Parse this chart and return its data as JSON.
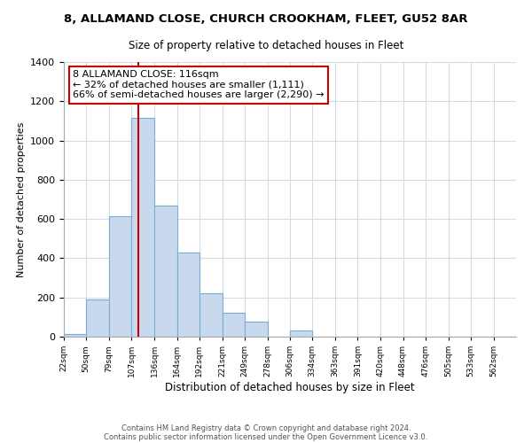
{
  "title": "8, ALLAMAND CLOSE, CHURCH CROOKHAM, FLEET, GU52 8AR",
  "subtitle": "Size of property relative to detached houses in Fleet",
  "xlabel": "Distribution of detached houses by size in Fleet",
  "ylabel": "Number of detached properties",
  "bar_color": "#c8d9ee",
  "bar_edgecolor": "#7bacd4",
  "vline_x": 116,
  "vline_color": "#cc0000",
  "annotation_line1": "8 ALLAMAND CLOSE: 116sqm",
  "annotation_line2": "← 32% of detached houses are smaller (1,111)",
  "annotation_line3": "66% of semi-detached houses are larger (2,290) →",
  "bin_edges": [
    22,
    50,
    79,
    107,
    136,
    164,
    192,
    221,
    249,
    278,
    306,
    334,
    363,
    391,
    420,
    448,
    476,
    505,
    533,
    562,
    590
  ],
  "bar_heights": [
    15,
    190,
    615,
    1115,
    670,
    430,
    220,
    120,
    75,
    0,
    30,
    0,
    0,
    0,
    0,
    0,
    0,
    0,
    0,
    0
  ],
  "ylim": [
    0,
    1400
  ],
  "yticks": [
    0,
    200,
    400,
    600,
    800,
    1000,
    1200,
    1400
  ],
  "footer1": "Contains HM Land Registry data © Crown copyright and database right 2024.",
  "footer2": "Contains public sector information licensed under the Open Government Licence v3.0.",
  "background_color": "#ffffff",
  "grid_color": "#d0dce8"
}
